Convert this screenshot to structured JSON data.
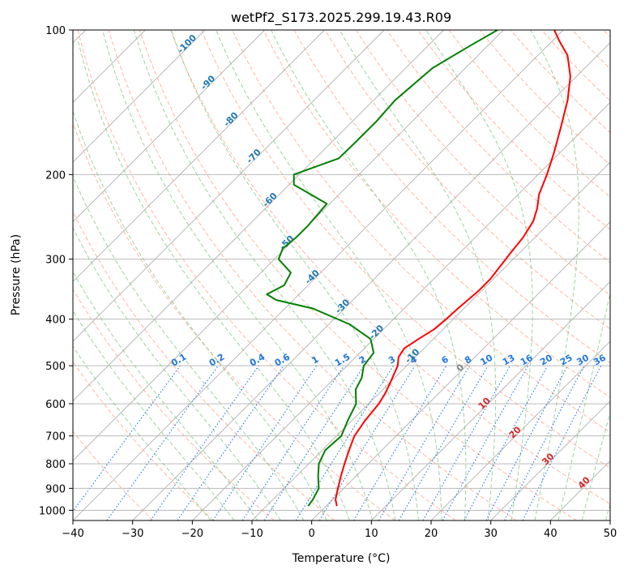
{
  "chart_data": {
    "type": "line",
    "title": "wetPf2_S173.2025.299.19.43.R09",
    "xlabel": "Temperature (°C)",
    "ylabel": "Pressure (hPa)",
    "xlim": [
      -40,
      50
    ],
    "ylim": [
      1050,
      100
    ],
    "y_scale": "log",
    "grid": true,
    "x_ticks": [
      -40,
      -30,
      -20,
      -10,
      0,
      10,
      20,
      30,
      40,
      50
    ],
    "y_ticks": [
      100,
      200,
      300,
      400,
      500,
      600,
      700,
      800,
      900,
      1000
    ],
    "skew": "skew-T (45°)",
    "series": [
      {
        "color": "#ff0000",
        "x": [
          1.8,
          0.5,
          -1.0,
          -2.5,
          -4.0,
          -5.5,
          -7.0,
          -7.8,
          -8.3,
          -9.0,
          -10.0,
          -11.5,
          -12.8,
          -13.3,
          -12.5,
          -11.5,
          -11.2,
          -11.0,
          -10.5,
          -10.5,
          -11.0,
          -11.5,
          -12.0,
          -13.0,
          -14.5,
          -16.5,
          -18.5,
          -21.0,
          -24.0,
          -27.5,
          -31.0,
          -35.0,
          -39.0,
          -41.5
        ],
        "y": [
          980,
          950,
          900,
          850,
          800,
          750,
          700,
          650,
          600,
          570,
          540,
          500,
          480,
          460,
          440,
          420,
          400,
          380,
          350,
          330,
          310,
          290,
          270,
          250,
          235,
          220,
          200,
          180,
          160,
          140,
          125,
          113,
          105,
          100
        ]
      },
      {
        "color": "#008000",
        "x": [
          -3.0,
          -3.3,
          -4.2,
          -6.3,
          -8.3,
          -9.5,
          -9.2,
          -10.7,
          -12.1,
          -14.6,
          -15.5,
          -17.2,
          -17.7,
          -20.5,
          -26.5,
          -35.3,
          -42.8,
          -45.4,
          -44.0,
          -45.0,
          -49.3,
          -50.4,
          -50.0,
          -50.0,
          -50.5,
          -59.2,
          -60.9,
          -56.1,
          -56.0,
          -56.0,
          -56.4,
          -55.5,
          -53.0,
          -51.0
        ],
        "y": [
          980,
          950,
          900,
          850,
          800,
          750,
          700,
          650,
          600,
          560,
          530,
          500,
          470,
          440,
          410,
          380,
          365,
          355,
          340,
          320,
          300,
          285,
          270,
          255,
          230,
          210,
          200,
          185,
          170,
          155,
          140,
          120,
          108,
          100
        ]
      }
    ],
    "dry_adiabat_labels": [
      "-100",
      "-90",
      "-80",
      "-70",
      "-60",
      "-50",
      "-40",
      "-30",
      "-20",
      "-10"
    ],
    "moist_adiabat_labels": [
      "0",
      "10",
      "20",
      "30",
      "40"
    ],
    "mixing_ratio_labels": [
      "0.1",
      "0.2",
      "0.4",
      "0.6",
      "1",
      "1.5",
      "2",
      "3",
      "4",
      "6",
      "8",
      "10",
      "13",
      "16",
      "20",
      "25",
      "30",
      "36"
    ],
    "colors": {
      "temperature": "#ff0000",
      "dewpoint": "#008000",
      "isotherm": "#b0b0b0",
      "dry_adiabat": "#ff9f80",
      "moist_adiabat": "#7cc47c",
      "mixing_ratio": "#1f77e0",
      "dry_label": "#1f77b4",
      "moist_label": "#d62728"
    }
  }
}
